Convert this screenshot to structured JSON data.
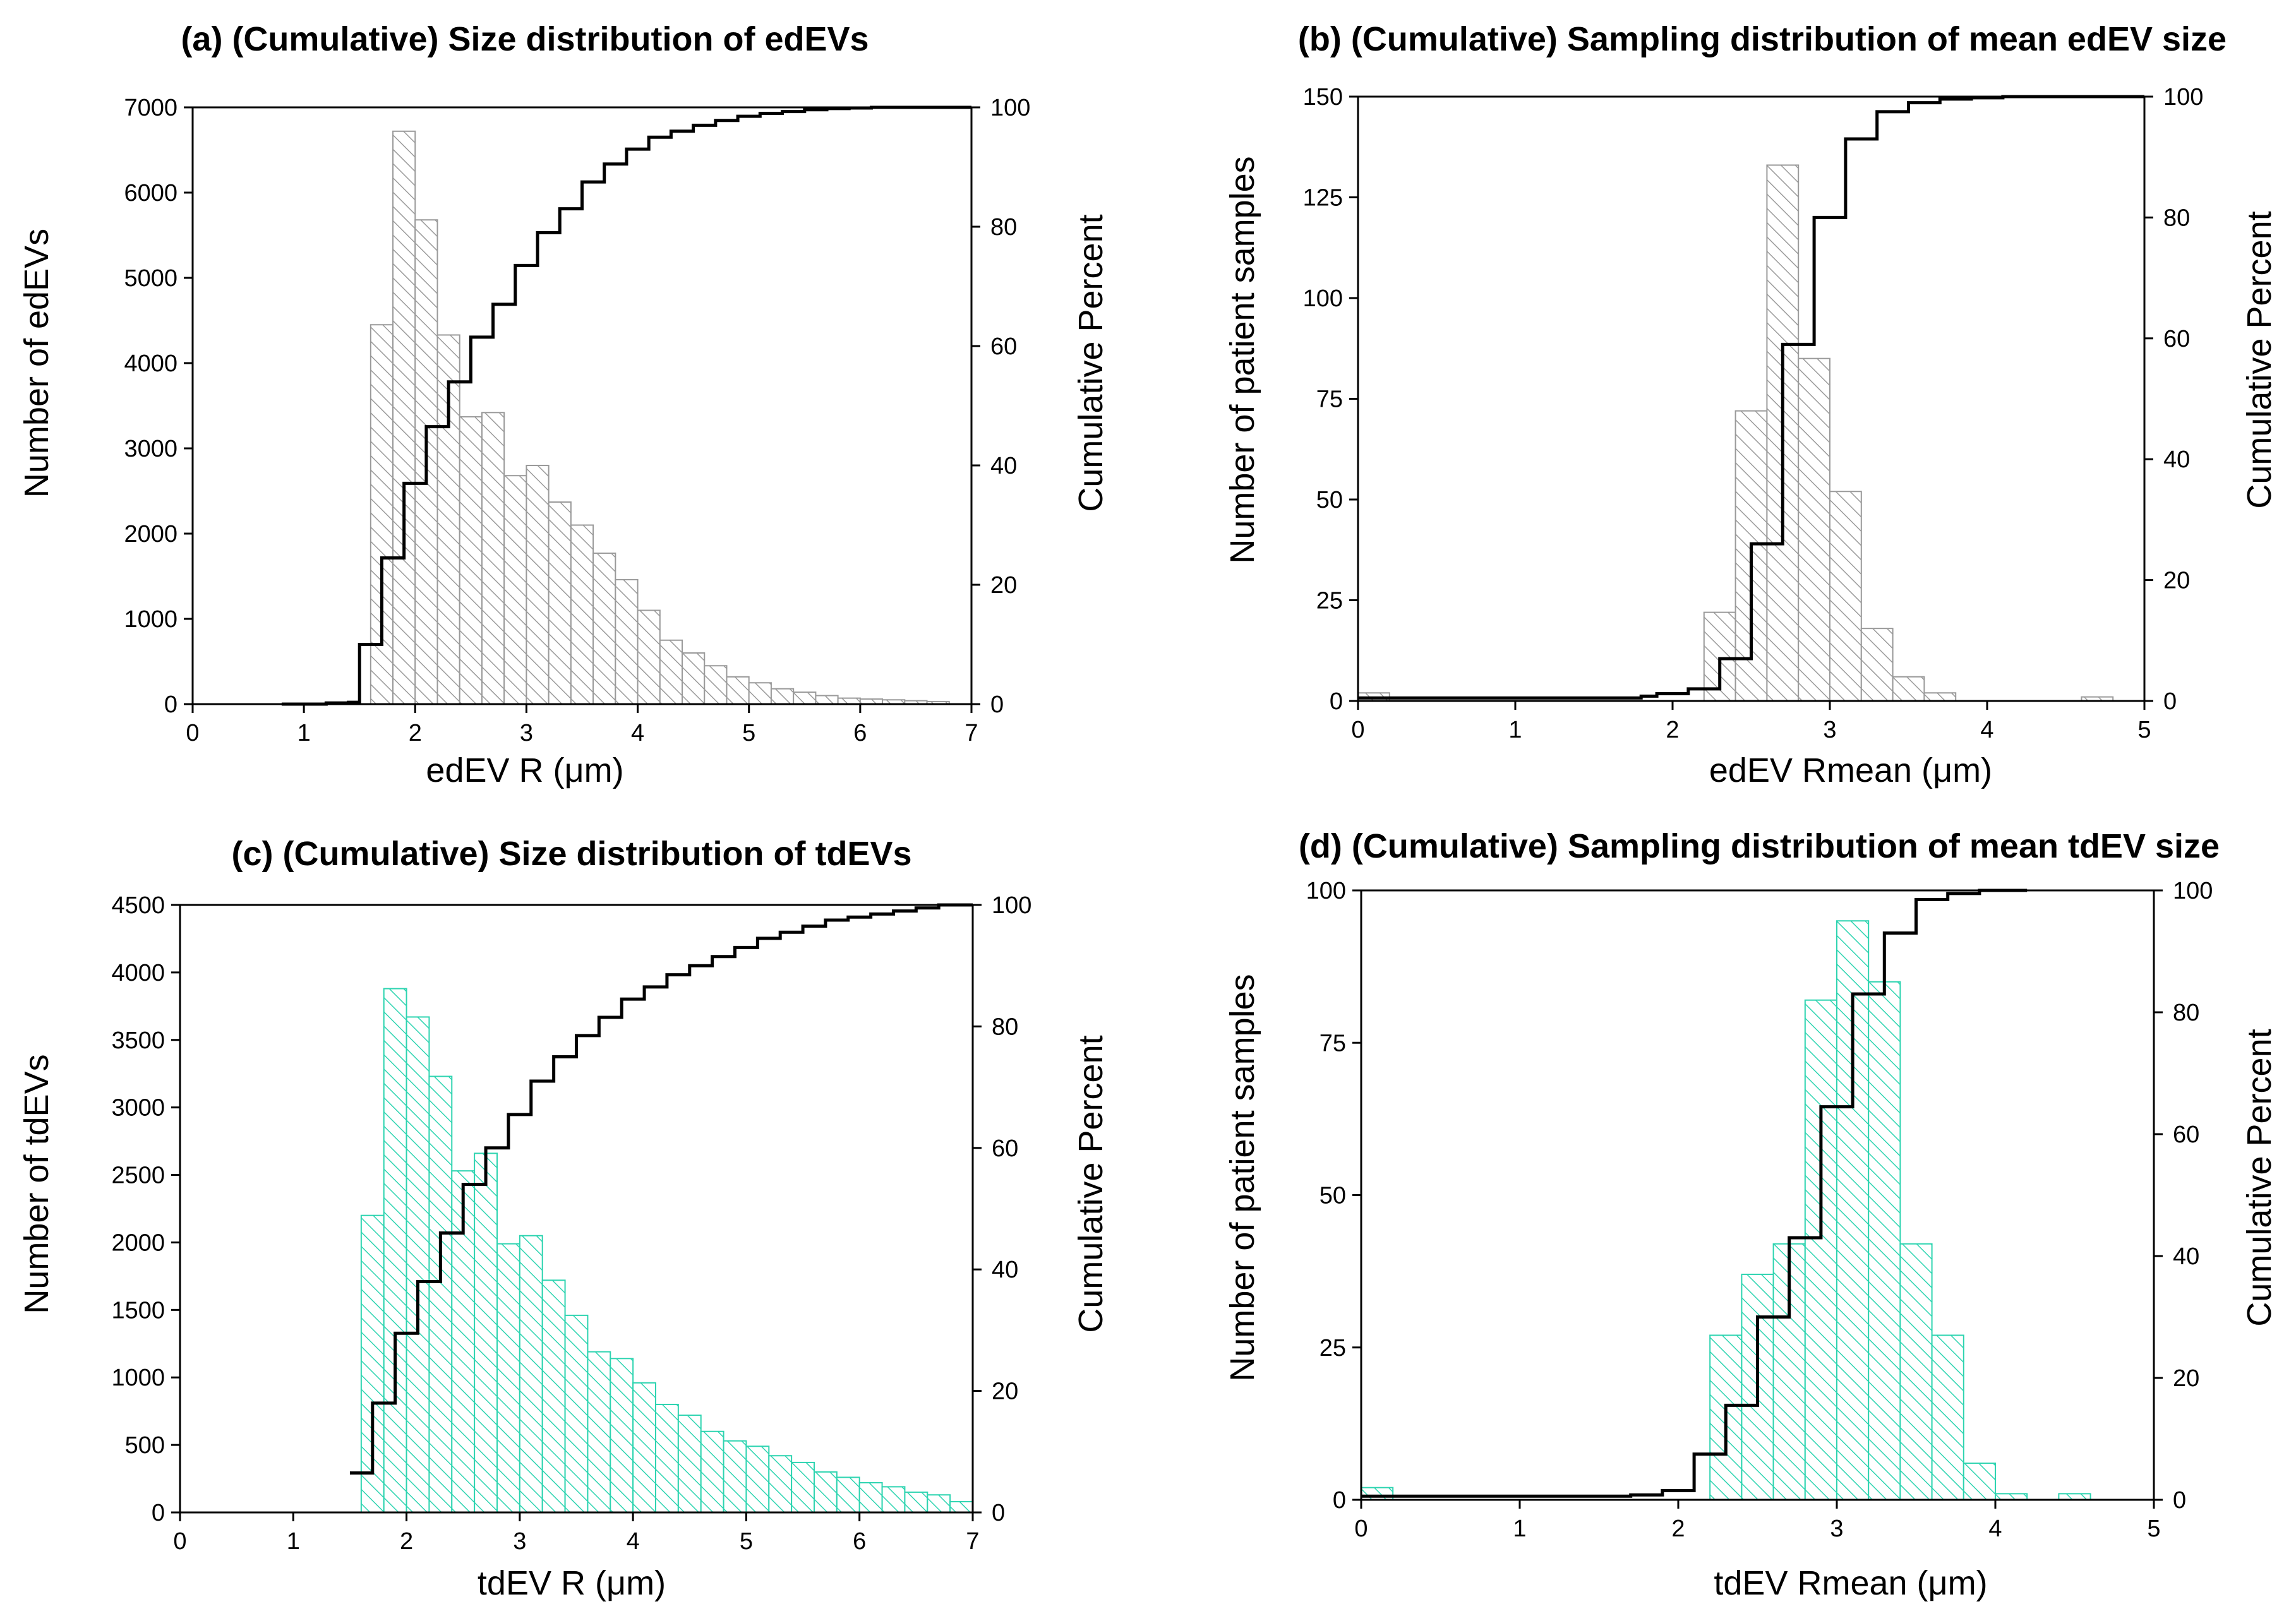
{
  "colors": {
    "gray_hatch": "#9a9a9a",
    "green_hatch": "#2dd4b0",
    "frame": "#000000",
    "cumulative": "#000000"
  },
  "chart_data": [
    {
      "id": "a",
      "type": "bar",
      "title": "(a) (Cumulative) Size distribution of edEVs",
      "xlabel": "edEV R (μm)",
      "ylabel": "Number of edEVs",
      "y2label": "Cumulative Percent",
      "xlim": [
        0,
        7
      ],
      "ylim": [
        0,
        7000
      ],
      "y2lim": [
        0,
        100
      ],
      "xticks": [
        "0",
        "1",
        "2",
        "3",
        "4",
        "5",
        "6",
        "7"
      ],
      "yticks": [
        "0",
        "1000",
        "2000",
        "3000",
        "4000",
        "5000",
        "6000",
        "7000"
      ],
      "y2ticks": [
        "0",
        "20",
        "40",
        "60",
        "80",
        "100"
      ],
      "color": "gray",
      "bin_width": 0.2,
      "bins": [
        1.6,
        1.8,
        2.0,
        2.2,
        2.4,
        2.6,
        2.8,
        3.0,
        3.2,
        3.4,
        3.6,
        3.8,
        4.0,
        4.2,
        4.4,
        4.6,
        4.8,
        5.0,
        5.2,
        5.4,
        5.6,
        5.8,
        6.0,
        6.2,
        6.4,
        6.6
      ],
      "values": [
        4450,
        6720,
        5680,
        4330,
        3370,
        3420,
        2680,
        2800,
        2370,
        2100,
        1770,
        1460,
        1100,
        750,
        600,
        450,
        320,
        250,
        180,
        140,
        100,
        70,
        60,
        50,
        40,
        30
      ],
      "cumulative_x": [
        0.8,
        1.0,
        1.2,
        1.4,
        1.5,
        1.7,
        1.9,
        2.1,
        2.3,
        2.5,
        2.7,
        2.9,
        3.1,
        3.3,
        3.5,
        3.7,
        3.9,
        4.1,
        4.3,
        4.5,
        4.7,
        4.9,
        5.1,
        5.3,
        5.5,
        5.7,
        5.9,
        6.1,
        6.3,
        6.5,
        6.7,
        7.0
      ],
      "cumulative_pct": [
        0,
        0,
        0.2,
        0.3,
        10,
        24.5,
        37,
        46.5,
        54,
        61.5,
        67,
        73.5,
        79,
        83,
        87.5,
        90.5,
        93,
        95,
        96,
        97,
        97.8,
        98.5,
        99,
        99.3,
        99.6,
        99.8,
        99.9,
        100,
        100,
        100,
        100,
        100
      ]
    },
    {
      "id": "b",
      "type": "bar",
      "title": "(b) (Cumulative) Sampling distribution of mean edEV size",
      "xlabel": "edEV Rmean (μm)",
      "ylabel": "Number of patient samples",
      "y2label": "Cumulative Percent",
      "xlim": [
        0,
        5
      ],
      "ylim": [
        0,
        150
      ],
      "y2lim": [
        0,
        100
      ],
      "xticks": [
        "0",
        "1",
        "2",
        "3",
        "4",
        "5"
      ],
      "yticks": [
        "0",
        "25",
        "50",
        "75",
        "100",
        "125",
        "150"
      ],
      "y2ticks": [
        "0",
        "20",
        "40",
        "60",
        "80",
        "100"
      ],
      "color": "gray",
      "bin_width": 0.2,
      "bins": [
        0.0,
        2.2,
        2.4,
        2.6,
        2.8,
        3.0,
        3.2,
        3.4,
        3.6,
        3.8,
        4.6
      ],
      "values": [
        2,
        22,
        72,
        133,
        85,
        52,
        18,
        6,
        2,
        0,
        1
      ],
      "cumulative_x": [
        0.0,
        1.8,
        1.9,
        2.1,
        2.3,
        2.5,
        2.7,
        2.9,
        3.1,
        3.3,
        3.5,
        3.7,
        3.9,
        4.1,
        4.5,
        5.0
      ],
      "cumulative_pct": [
        0.5,
        0.8,
        1.2,
        2,
        7,
        26,
        59,
        80,
        93,
        97.5,
        99,
        99.6,
        99.8,
        100,
        100,
        100
      ]
    },
    {
      "id": "c",
      "type": "bar",
      "title": "(c) (Cumulative) Size distribution of tdEVs",
      "xlabel": "tdEV R (μm)",
      "ylabel": "Number of tdEVs",
      "y2label": "Cumulative Percent",
      "xlim": [
        0,
        7
      ],
      "ylim": [
        0,
        4500
      ],
      "y2lim": [
        0,
        100
      ],
      "xticks": [
        "0",
        "1",
        "2",
        "3",
        "4",
        "5",
        "6",
        "7"
      ],
      "yticks": [
        "0",
        "500",
        "1000",
        "1500",
        "2000",
        "2500",
        "3000",
        "3500",
        "4000",
        "4500"
      ],
      "y2ticks": [
        "0",
        "20",
        "40",
        "60",
        "80",
        "100"
      ],
      "color": "green",
      "bin_width": 0.2,
      "bins": [
        1.6,
        1.8,
        2.0,
        2.2,
        2.4,
        2.6,
        2.8,
        3.0,
        3.2,
        3.4,
        3.6,
        3.8,
        4.0,
        4.2,
        4.4,
        4.6,
        4.8,
        5.0,
        5.2,
        5.4,
        5.6,
        5.8,
        6.0,
        6.2,
        6.4,
        6.6,
        6.8
      ],
      "values": [
        2200,
        3880,
        3670,
        3230,
        2530,
        2660,
        1990,
        2050,
        1720,
        1460,
        1190,
        1140,
        960,
        800,
        720,
        600,
        530,
        490,
        420,
        370,
        300,
        260,
        220,
        190,
        150,
        130,
        80
      ],
      "cumulative_x": [
        1.5,
        1.7,
        1.9,
        2.1,
        2.3,
        2.5,
        2.7,
        2.9,
        3.1,
        3.3,
        3.5,
        3.7,
        3.9,
        4.1,
        4.3,
        4.5,
        4.7,
        4.9,
        5.1,
        5.3,
        5.5,
        5.7,
        5.9,
        6.1,
        6.3,
        6.5,
        6.7,
        7.0
      ],
      "cumulative_pct": [
        6.5,
        18,
        29.5,
        38,
        46,
        54,
        60,
        65.5,
        71,
        75,
        78.5,
        81.5,
        84.5,
        86.5,
        88.5,
        90,
        91.5,
        93,
        94.5,
        95.5,
        96.5,
        97.5,
        98,
        98.5,
        99,
        99.5,
        100,
        100
      ]
    },
    {
      "id": "d",
      "type": "bar",
      "title": "(d) (Cumulative) Sampling distribution of mean tdEV size",
      "xlabel": "tdEV Rmean (μm)",
      "ylabel": "Number of patient samples",
      "y2label": "Cumulative Percent",
      "xlim": [
        0,
        5
      ],
      "ylim": [
        0,
        100
      ],
      "y2lim": [
        0,
        100
      ],
      "xticks": [
        "0",
        "1",
        "2",
        "3",
        "4",
        "5"
      ],
      "yticks": [
        "0",
        "25",
        "50",
        "75",
        "100"
      ],
      "y2ticks": [
        "0",
        "20",
        "40",
        "60",
        "80",
        "100"
      ],
      "color": "green",
      "bin_width": 0.2,
      "bins": [
        0.0,
        2.0,
        2.2,
        2.4,
        2.6,
        2.8,
        3.0,
        3.2,
        3.4,
        3.6,
        3.8,
        4.0,
        4.4
      ],
      "values": [
        2,
        0,
        27,
        37,
        42,
        82,
        95,
        85,
        42,
        27,
        6,
        1,
        1
      ],
      "cumulative_x": [
        0.0,
        1.5,
        1.7,
        1.9,
        2.1,
        2.3,
        2.5,
        2.7,
        2.9,
        3.1,
        3.3,
        3.5,
        3.7,
        3.9,
        4.2
      ],
      "cumulative_pct": [
        0.6,
        0.6,
        0.8,
        1.5,
        7.5,
        15.5,
        30,
        43,
        64.5,
        83,
        93,
        98.5,
        99.5,
        100,
        100
      ]
    }
  ]
}
